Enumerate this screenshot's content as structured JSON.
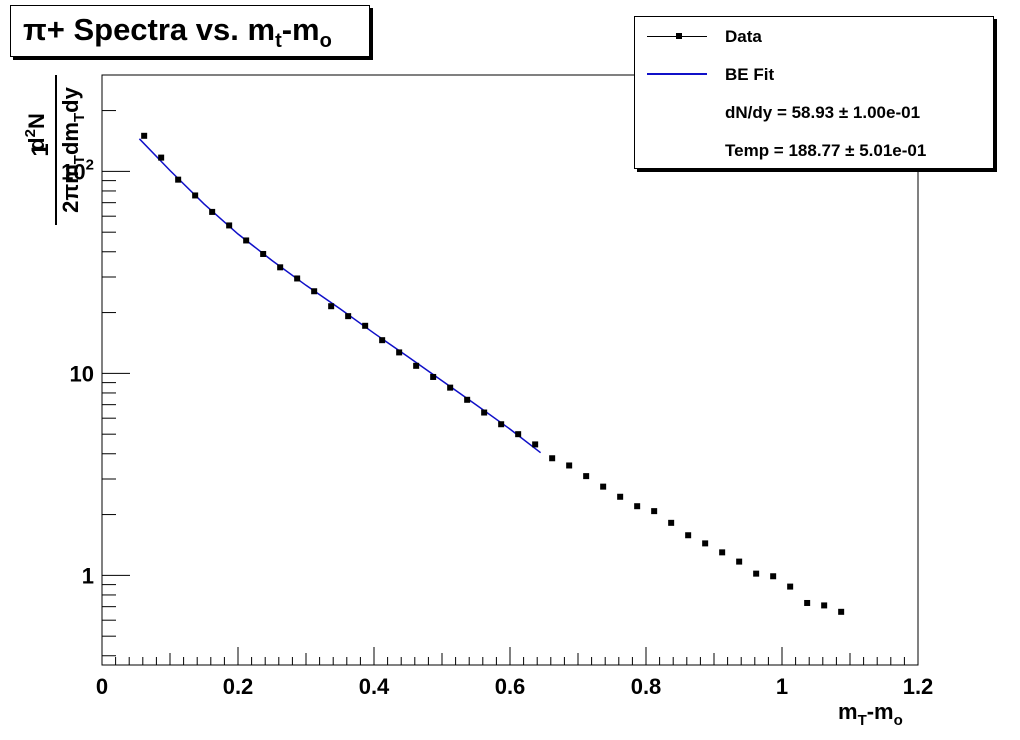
{
  "title": {
    "main": "π+ Spectra vs. m",
    "sub": "t",
    "dash": "-m",
    "sub2": "o"
  },
  "legend": {
    "data_label": "Data",
    "fit_label": "BE Fit",
    "dndy_text": "dN/dy = 58.93 ± 1.00e-01",
    "temp_text": "Temp  = 188.77 ± 5.01e-01"
  },
  "axes": {
    "xlabel": {
      "main": "m",
      "sub": "T",
      "rest": "-m",
      "sub2": "o"
    },
    "ylabel": {
      "one": "1",
      "num_d": "d",
      "num_sup": "2",
      "num_N": "N",
      "den_a": "2πm",
      "den_sub1": "T",
      "den_b": "dm",
      "den_sub2": "T",
      "den_c": "dy"
    }
  },
  "colors": {
    "data": "#000000",
    "fit": "#1010c8",
    "frame": "#000000"
  },
  "chart_data": {
    "type": "scatter",
    "title": "π+ Spectra vs. mt-mo",
    "xlabel": "mT-mo",
    "ylabel": "1/(2π mT) d2N/(dmT dy)",
    "xlim": [
      0,
      1.2
    ],
    "ylim": [
      0.36,
      300
    ],
    "yscale": "log",
    "grid": false,
    "legend_position": "top-right",
    "x_ticks": [
      "0",
      "0.2",
      "0.4",
      "0.6",
      "0.8",
      "1",
      "1.2"
    ],
    "y_ticks": [
      {
        "value": 1,
        "label": "1"
      },
      {
        "value": 10,
        "label": "10"
      },
      {
        "value": 100,
        "label": "10^2"
      }
    ],
    "series": [
      {
        "name": "Data",
        "style": "markers",
        "x": [
          0.062,
          0.087,
          0.112,
          0.137,
          0.162,
          0.187,
          0.212,
          0.237,
          0.262,
          0.287,
          0.312,
          0.337,
          0.362,
          0.387,
          0.412,
          0.437,
          0.462,
          0.487,
          0.512,
          0.537,
          0.562,
          0.587,
          0.612,
          0.637,
          0.662,
          0.687,
          0.712,
          0.737,
          0.762,
          0.787,
          0.812,
          0.837,
          0.862,
          0.887,
          0.912,
          0.937,
          0.962,
          0.987,
          1.012,
          1.037,
          1.062,
          1.087
        ],
        "y": [
          150,
          117,
          91,
          76,
          63,
          54,
          45.5,
          39,
          33.5,
          29.5,
          25.5,
          21.5,
          19.2,
          17.2,
          14.6,
          12.7,
          10.9,
          9.6,
          8.5,
          7.4,
          6.4,
          5.6,
          5.0,
          4.45,
          3.8,
          3.5,
          3.1,
          2.75,
          2.45,
          2.2,
          2.08,
          1.82,
          1.58,
          1.44,
          1.3,
          1.17,
          1.02,
          0.99,
          0.88,
          0.73,
          0.71,
          0.66
        ]
      },
      {
        "name": "BE Fit",
        "style": "line",
        "x": [
          0.055,
          0.1,
          0.15,
          0.2,
          0.25,
          0.3,
          0.35,
          0.4,
          0.45,
          0.5,
          0.55,
          0.6,
          0.645
        ],
        "y": [
          145,
          101,
          69,
          49,
          36.2,
          27.3,
          20.9,
          15.8,
          12.1,
          9.2,
          7.0,
          5.3,
          4.05
        ]
      }
    ]
  }
}
